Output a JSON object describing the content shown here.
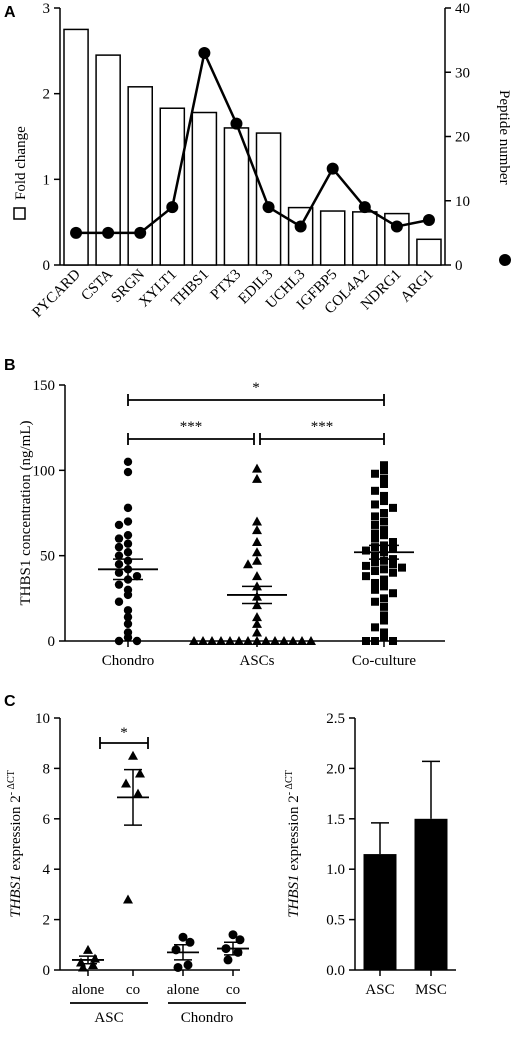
{
  "panels": {
    "a": "A",
    "b": "B",
    "c": "C"
  },
  "chart_data": [
    {
      "type": "bar",
      "panel": "A",
      "categories": [
        "PYCARD",
        "CSTA",
        "SRGN",
        "XYLT1",
        "THBS1",
        "PTX3",
        "EDIL3",
        "UCHL3",
        "IGFBP5",
        "COL4A2",
        "NDRG1",
        "ARG1"
      ],
      "ylabel": "Fold change",
      "y2label": "Peptide number",
      "ylim": [
        0,
        3
      ],
      "y2lim": [
        0,
        40
      ],
      "yticks": [
        0,
        1,
        2,
        3
      ],
      "y2ticks": [
        0,
        10,
        20,
        30,
        40
      ],
      "series": [
        {
          "type": "bar",
          "axis": "left",
          "values": [
            2.75,
            2.45,
            2.08,
            1.83,
            1.78,
            1.6,
            1.54,
            0.67,
            0.63,
            0.62,
            0.6,
            0.3
          ]
        },
        {
          "type": "line",
          "axis": "right",
          "values": [
            5,
            5,
            5,
            9,
            33,
            22,
            9,
            6,
            15,
            9,
            6,
            7
          ]
        }
      ]
    },
    {
      "type": "scatter",
      "panel": "B",
      "categories": [
        "Chondro",
        "ASCs",
        "Co-culture"
      ],
      "ylabel": "THBS1  concentration (ng/mL)",
      "ylim": [
        0,
        150
      ],
      "yticks": [
        0,
        50,
        100,
        150
      ],
      "means": [
        42,
        27,
        52
      ],
      "sem": [
        6,
        5,
        4
      ],
      "points": [
        [
          105,
          99,
          78,
          70,
          68,
          62,
          60,
          57,
          55,
          52,
          50,
          47,
          45,
          42,
          40,
          38,
          36,
          33,
          30,
          27,
          23,
          18,
          14,
          10,
          5,
          2,
          0,
          0
        ],
        [
          101,
          95,
          70,
          65,
          58,
          52,
          47,
          45,
          38,
          32,
          26,
          21,
          14,
          10,
          5,
          0,
          0,
          0,
          0,
          0,
          0,
          0,
          0,
          0,
          0,
          0,
          0,
          0,
          0
        ],
        [
          103,
          100,
          98,
          95,
          92,
          88,
          85,
          82,
          80,
          78,
          75,
          73,
          70,
          68,
          65,
          63,
          62,
          60,
          58,
          56,
          55,
          54,
          53,
          52,
          50,
          48,
          47,
          46,
          45,
          44,
          43,
          42,
          41,
          40,
          38,
          36,
          34,
          32,
          30,
          28,
          25,
          23,
          20,
          15,
          12,
          8,
          5,
          2,
          0,
          0,
          0
        ]
      ],
      "significance": [
        {
          "from": 0,
          "to": 2,
          "label": "*"
        },
        {
          "from": 0,
          "to": 1,
          "label": "***"
        },
        {
          "from": 1,
          "to": 2,
          "label": "***"
        }
      ]
    },
    {
      "type": "scatter",
      "panel": "C-left",
      "categories": [
        "alone",
        "co",
        "alone",
        "co"
      ],
      "groups": [
        "ASC",
        "Chondro"
      ],
      "ylabel": "THBS1 expression 2⁻ΔCT",
      "ylabel_italic": "THBS1",
      "ylabel_rest": " expression 2",
      "ylabel_sup": "- ΔCT",
      "ylim": [
        0,
        10
      ],
      "yticks": [
        0,
        2,
        4,
        6,
        8,
        10
      ],
      "means": [
        0.4,
        6.85,
        0.7,
        0.85
      ],
      "sem": [
        0.15,
        1.1,
        0.3,
        0.25
      ],
      "points": [
        [
          0.8,
          0.45,
          0.3,
          0.2,
          0.1
        ],
        [
          8.5,
          7.8,
          7.4,
          7.0,
          2.8
        ],
        [
          1.3,
          1.1,
          0.8,
          0.2,
          0.1
        ],
        [
          1.4,
          1.2,
          0.85,
          0.7,
          0.4
        ]
      ],
      "significance": [
        {
          "from": 0,
          "to": 1,
          "label": "*"
        }
      ]
    },
    {
      "type": "bar",
      "panel": "C-right",
      "categories": [
        "ASC",
        "MSC"
      ],
      "values": [
        1.15,
        1.5
      ],
      "errors": [
        0.31,
        0.57
      ],
      "ylabel_italic": "THBS1",
      "ylabel_rest": " expression 2",
      "ylabel_sup": "- ΔCT",
      "ylim": [
        0,
        2.5
      ],
      "yticks": [
        "0.0",
        "0.5",
        "1.0",
        "1.5",
        "2.0",
        "2.5"
      ]
    }
  ]
}
